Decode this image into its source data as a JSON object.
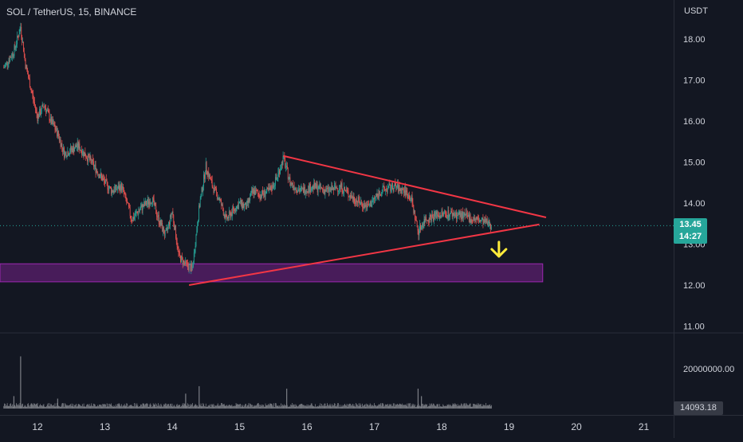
{
  "header": {
    "symbol": "SOL / TetherUS",
    "interval": "15",
    "exchange": "BINANCE"
  },
  "price_axis": {
    "currency": "USDT",
    "ticks": [
      "18.00",
      "17.00",
      "16.00",
      "15.00",
      "14.00",
      "13.00",
      "12.00",
      "11.00"
    ]
  },
  "volume_axis": {
    "ticks": [
      "20000000.00"
    ]
  },
  "time_axis": {
    "ticks": [
      "12",
      "13",
      "14",
      "15",
      "16",
      "17",
      "18",
      "19",
      "20",
      "21"
    ]
  },
  "last_price": {
    "value": "13.45",
    "countdown": "14:27"
  },
  "last_volume": "14093.18",
  "colors": {
    "background": "#131722",
    "up": "#26a69a",
    "down": "#ef5350",
    "trendline": "#f23645",
    "zone_fill": "#5b1f6e",
    "zone_border": "#9c27b0",
    "arrow": "#ffeb3b",
    "axis_text": "#d1d4dc",
    "volume": "#7c7f86"
  },
  "chart_data": {
    "type": "candlestick",
    "x_range": [
      11.5,
      21.2
    ],
    "y_range": [
      10.8,
      18.8
    ],
    "price_path": [
      [
        11.5,
        17.3
      ],
      [
        11.65,
        17.7
      ],
      [
        11.75,
        18.3
      ],
      [
        11.82,
        17.4
      ],
      [
        11.9,
        16.8
      ],
      [
        12.0,
        16.1
      ],
      [
        12.1,
        16.4
      ],
      [
        12.2,
        16.0
      ],
      [
        12.3,
        15.7
      ],
      [
        12.4,
        15.2
      ],
      [
        12.6,
        15.4
      ],
      [
        12.8,
        15.0
      ],
      [
        13.0,
        14.5
      ],
      [
        13.1,
        14.3
      ],
      [
        13.25,
        14.4
      ],
      [
        13.4,
        13.6
      ],
      [
        13.55,
        13.9
      ],
      [
        13.7,
        14.1
      ],
      [
        13.8,
        13.6
      ],
      [
        13.9,
        13.2
      ],
      [
        14.0,
        13.8
      ],
      [
        14.1,
        12.7
      ],
      [
        14.2,
        12.5
      ],
      [
        14.3,
        12.4
      ],
      [
        14.4,
        13.9
      ],
      [
        14.5,
        14.9
      ],
      [
        14.6,
        14.4
      ],
      [
        14.7,
        14.1
      ],
      [
        14.8,
        13.6
      ],
      [
        14.9,
        13.8
      ],
      [
        15.0,
        14.0
      ],
      [
        15.1,
        13.9
      ],
      [
        15.2,
        14.3
      ],
      [
        15.3,
        14.2
      ],
      [
        15.45,
        14.3
      ],
      [
        15.55,
        14.6
      ],
      [
        15.65,
        15.1
      ],
      [
        15.75,
        14.5
      ],
      [
        15.9,
        14.3
      ],
      [
        16.1,
        14.4
      ],
      [
        16.3,
        14.3
      ],
      [
        16.5,
        14.4
      ],
      [
        16.7,
        14.1
      ],
      [
        16.9,
        13.9
      ],
      [
        17.1,
        14.3
      ],
      [
        17.3,
        14.4
      ],
      [
        17.45,
        14.3
      ],
      [
        17.55,
        14.1
      ],
      [
        17.65,
        13.3
      ],
      [
        17.75,
        13.6
      ],
      [
        17.9,
        13.7
      ],
      [
        18.1,
        13.75
      ],
      [
        18.3,
        13.7
      ],
      [
        18.5,
        13.6
      ],
      [
        18.7,
        13.5
      ],
      [
        18.75,
        13.45
      ]
    ],
    "volume_spikes": [
      [
        11.65,
        5000000
      ],
      [
        11.75,
        21000000
      ],
      [
        12.3,
        4000000
      ],
      [
        14.2,
        6000000
      ],
      [
        14.4,
        9000000
      ],
      [
        15.7,
        8000000
      ],
      [
        17.65,
        8000000
      ],
      [
        17.7,
        5000000
      ]
    ],
    "volume_range": [
      0,
      25000000
    ],
    "annotations": {
      "upper_trendline": [
        [
          15.65,
          15.15
        ],
        [
          19.55,
          13.65
        ]
      ],
      "lower_trendline": [
        [
          14.25,
          12.0
        ],
        [
          19.45,
          13.48
        ]
      ],
      "support_zone": {
        "x": [
          11.5,
          19.5
        ],
        "y": [
          12.08,
          12.52
        ]
      },
      "down_arrow": {
        "x": 18.85,
        "y_from": 13.05,
        "y_to": 12.7
      },
      "last_price_line": 13.45
    }
  }
}
